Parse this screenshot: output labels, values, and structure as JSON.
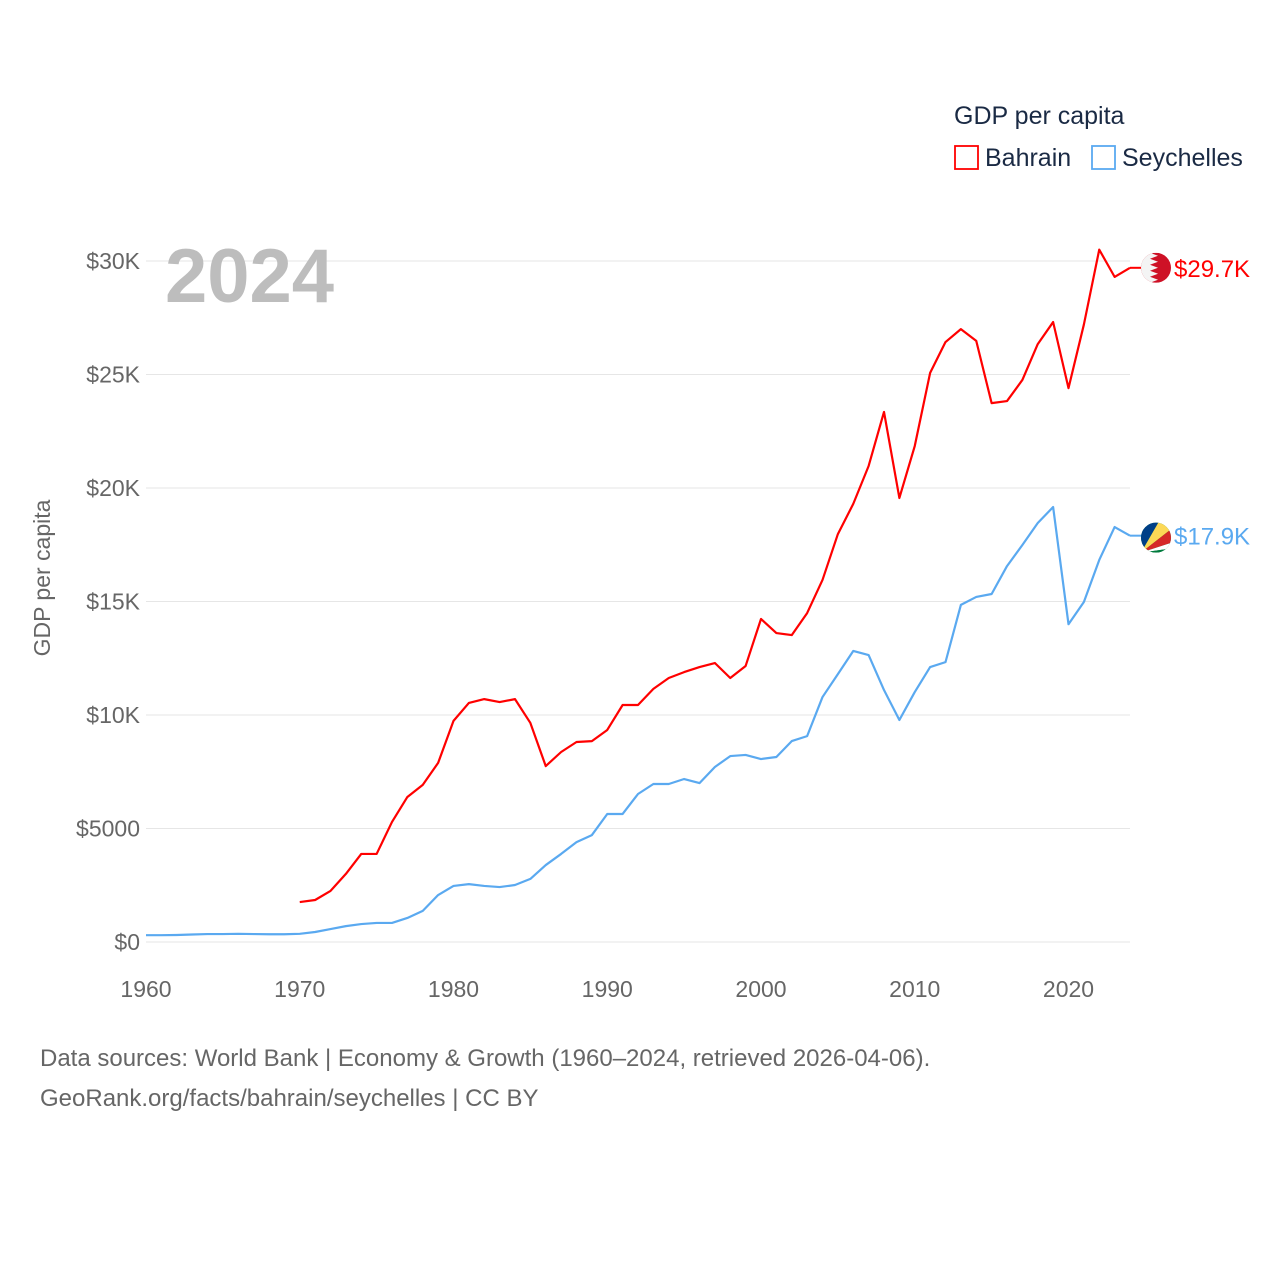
{
  "chart_data": {
    "type": "line",
    "big_year_label": "2024",
    "ylabel": "GDP per capita",
    "legend": {
      "title": "GDP per capita",
      "placement": "top-right"
    },
    "x_ticks": [
      1960,
      1970,
      1980,
      1990,
      2000,
      2010,
      2020
    ],
    "y_ticks": [
      {
        "value": 0,
        "label": "$0"
      },
      {
        "value": 5000,
        "label": "$5000"
      },
      {
        "value": 10000,
        "label": "$10K"
      },
      {
        "value": 15000,
        "label": "$15K"
      },
      {
        "value": 20000,
        "label": "$20K"
      },
      {
        "value": 25000,
        "label": "$25K"
      },
      {
        "value": 30000,
        "label": "$30K"
      }
    ],
    "xlim": [
      1960,
      2024
    ],
    "ylim": [
      0,
      30000
    ],
    "grid": true,
    "series": [
      {
        "name": "Bahrain",
        "color": "#ff0000",
        "end_label": "$29.7K",
        "flag": "bahrain-flag",
        "start_year": 1970,
        "values": [
          1760,
          1850,
          2250,
          3000,
          3880,
          3880,
          5290,
          6390,
          6920,
          7890,
          9740,
          10530,
          10700,
          10570,
          10700,
          9650,
          7750,
          8370,
          8810,
          8850,
          9340,
          10440,
          10440,
          11150,
          11630,
          11890,
          12110,
          12290,
          11630,
          12160,
          14230,
          13610,
          13520,
          14490,
          15950,
          17970,
          19300,
          20970,
          23350,
          19560,
          21850,
          25070,
          26430,
          27000,
          26480,
          23740,
          23830,
          24760,
          26340,
          27310,
          24400,
          27200,
          30500,
          29300,
          29700
        ]
      },
      {
        "name": "Seychelles",
        "color": "#5aa9f0",
        "end_label": "$17.9K",
        "flag": "seychelles-flag",
        "start_year": 1960,
        "values": [
          300,
          300,
          310,
          330,
          350,
          350,
          360,
          350,
          340,
          340,
          360,
          440,
          570,
          700,
          790,
          840,
          840,
          1060,
          1370,
          2070,
          2470,
          2550,
          2470,
          2420,
          2510,
          2780,
          3390,
          3880,
          4400,
          4710,
          5640,
          5640,
          6520,
          6960,
          6960,
          7180,
          7000,
          7710,
          8190,
          8240,
          8060,
          8150,
          8850,
          9070,
          10790,
          11800,
          12820,
          12640,
          11100,
          9780,
          11010,
          12110,
          12330,
          14850,
          15200,
          15330,
          16560,
          17490,
          18460,
          19160,
          14000,
          14980,
          16830,
          18280,
          17900
        ]
      }
    ]
  },
  "footer": {
    "line1": "Data sources: World Bank | Economy & Growth (1960–2024, retrieved 2026-04-06).",
    "line2": "GeoRank.org/facts/bahrain/seychelles | CC BY"
  }
}
